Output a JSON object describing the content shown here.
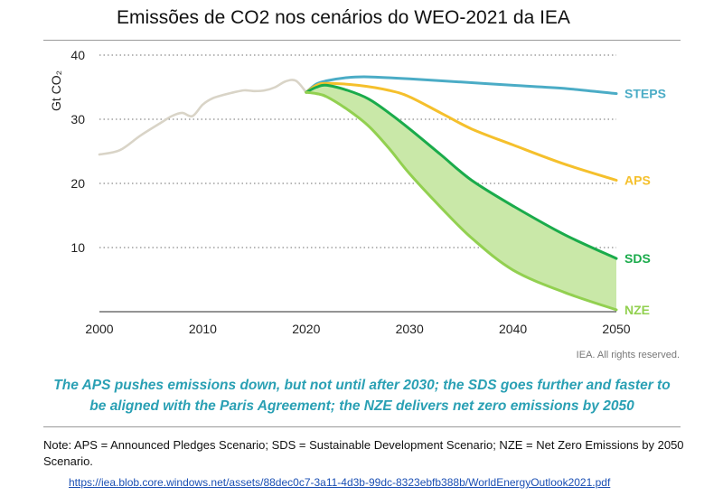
{
  "title": "Emissões de CO2 nos cenários do WEO-2021 da IEA",
  "credit": "IEA. All rights reserved.",
  "caption_lines": [
    "The APS pushes emissions down, but not until after 2030; the SDS goes further and faster to",
    "be aligned with the Paris Agreement; the NZE delivers net zero emissions by 2050"
  ],
  "note": "Note:  APS = Announced Pledges Scenario; SDS = Sustainable Development Scenario; NZE = Net Zero Emissions by 2050 Scenario.",
  "source_url": "https://iea.blob.core.windows.net/assets/88dec0c7-3a11-4d3b-99dc-8323ebfb388b/WorldEnergyOutlook2021.pdf",
  "chart_data": {
    "type": "line",
    "ylabel": "Gt CO₂",
    "xlim": [
      2000,
      2050
    ],
    "ylim": [
      0,
      40
    ],
    "x_ticks": [
      2000,
      2010,
      2020,
      2030,
      2040,
      2050
    ],
    "y_ticks": [
      10,
      20,
      30,
      40
    ],
    "grid": "horizontal-dotted",
    "shaded_band": {
      "between": [
        "SDS",
        "NZE"
      ],
      "color": "#c9e8a8"
    },
    "series": [
      {
        "name": "Historical",
        "color": "#d9d4c7",
        "x": [
          2000,
          2002,
          2004,
          2006,
          2007,
          2008,
          2009,
          2010,
          2011,
          2012,
          2013,
          2014,
          2015,
          2016,
          2017,
          2018,
          2019,
          2020
        ],
        "y": [
          24.5,
          25.2,
          27.5,
          29.5,
          30.5,
          31.0,
          30.5,
          32.3,
          33.3,
          33.8,
          34.2,
          34.5,
          34.4,
          34.5,
          35.0,
          35.9,
          36.0,
          34.2
        ]
      },
      {
        "name": "STEPS",
        "color": "#4bacc6",
        "x": [
          2020,
          2021,
          2022,
          2024,
          2026,
          2030,
          2035,
          2040,
          2045,
          2050
        ],
        "y": [
          34.2,
          35.5,
          36.0,
          36.5,
          36.6,
          36.3,
          35.8,
          35.3,
          34.8,
          34.0
        ]
      },
      {
        "name": "APS",
        "color": "#f5c02c",
        "x": [
          2020,
          2021,
          2022,
          2025,
          2028,
          2030,
          2033,
          2036,
          2040,
          2045,
          2050
        ],
        "y": [
          34.2,
          35.3,
          35.6,
          35.3,
          34.5,
          33.5,
          31.0,
          28.5,
          26.0,
          23.0,
          20.5
        ]
      },
      {
        "name": "SDS",
        "color": "#1aab4b",
        "x": [
          2020,
          2021,
          2022,
          2024,
          2026,
          2028,
          2030,
          2033,
          2036,
          2040,
          2045,
          2050
        ],
        "y": [
          34.2,
          35.0,
          35.3,
          34.5,
          33.2,
          31.0,
          28.5,
          24.5,
          20.5,
          16.5,
          12.0,
          8.3
        ]
      },
      {
        "name": "NZE",
        "color": "#92d050",
        "x": [
          2020,
          2021,
          2022,
          2024,
          2026,
          2028,
          2030,
          2033,
          2036,
          2040,
          2045,
          2050
        ],
        "y": [
          34.2,
          34.0,
          33.5,
          31.5,
          29.0,
          25.5,
          21.5,
          16.3,
          11.5,
          6.5,
          3.0,
          0.3
        ]
      }
    ]
  }
}
